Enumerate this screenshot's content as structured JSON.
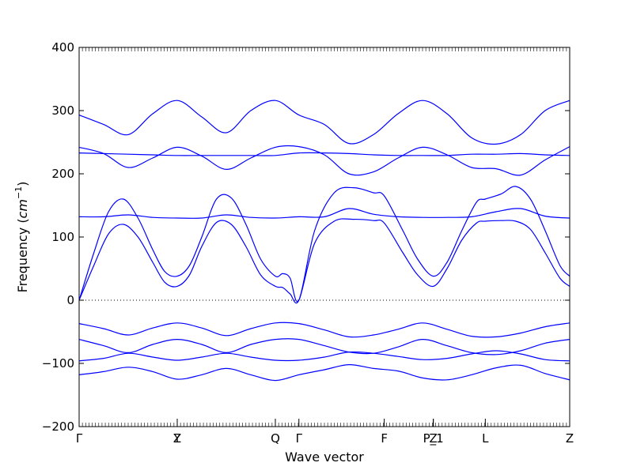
{
  "chart_data": {
    "type": "line",
    "title": "",
    "xlabel": "Wave vector",
    "ylabel_text": "Frequency (",
    "ylabel_unit": "cm",
    "ylabel_exp": "−1",
    "ylabel_close": ")",
    "ylim": [
      -200,
      400
    ],
    "yticks": [
      -200,
      -100,
      0,
      100,
      200,
      300,
      400
    ],
    "xlim": [
      0,
      1
    ],
    "high_symmetry_points": [
      {
        "label": "Γ",
        "x": 0.0
      },
      {
        "label": "Y",
        "x": 0.2
      },
      {
        "label": "Z",
        "x": 0.2
      },
      {
        "label": "Q",
        "x": 0.4
      },
      {
        "label": "Γ",
        "x": 0.448
      },
      {
        "label": "F",
        "x": 0.622
      },
      {
        "label": "P_1",
        "x": 0.722
      },
      {
        "label": "Z",
        "x": 0.722
      },
      {
        "label": "L",
        "x": 0.828
      },
      {
        "label": "Z",
        "x": 1.0
      }
    ],
    "zero_line": true,
    "series_color": "#0000ff",
    "series": [
      {
        "x": [
          0,
          0.05,
          0.1,
          0.15,
          0.2,
          0.25,
          0.3,
          0.35,
          0.4,
          0.448,
          0.5,
          0.55,
          0.6,
          0.65,
          0.7,
          0.75,
          0.8,
          0.85,
          0.9,
          0.95,
          1.0
        ],
        "y": [
          -118,
          -113,
          -106,
          -113,
          -125,
          -118,
          -108,
          -118,
          -127,
          -118,
          -110,
          -102,
          -108,
          -112,
          -123,
          -126,
          -118,
          -107,
          -103,
          -116,
          -126
        ]
      },
      {
        "x": [
          0,
          0.05,
          0.1,
          0.15,
          0.2,
          0.25,
          0.3,
          0.35,
          0.4,
          0.448,
          0.5,
          0.55,
          0.6,
          0.65,
          0.7,
          0.75,
          0.8,
          0.85,
          0.9,
          0.95,
          1.0
        ],
        "y": [
          -96,
          -92,
          -84,
          -90,
          -95,
          -90,
          -84,
          -90,
          -95,
          -95,
          -90,
          -82,
          -84,
          -89,
          -94,
          -92,
          -85,
          -80,
          -85,
          -94,
          -96
        ]
      },
      {
        "x": [
          0,
          0.05,
          0.1,
          0.15,
          0.2,
          0.25,
          0.3,
          0.35,
          0.4,
          0.448,
          0.5,
          0.55,
          0.6,
          0.65,
          0.7,
          0.75,
          0.8,
          0.85,
          0.9,
          0.95,
          1.0
        ],
        "y": [
          -62,
          -72,
          -83,
          -70,
          -62,
          -70,
          -83,
          -70,
          -62,
          -62,
          -72,
          -82,
          -84,
          -74,
          -62,
          -72,
          -83,
          -86,
          -80,
          -68,
          -62
        ]
      },
      {
        "x": [
          0,
          0.05,
          0.1,
          0.15,
          0.2,
          0.25,
          0.3,
          0.35,
          0.4,
          0.448,
          0.5,
          0.55,
          0.6,
          0.65,
          0.7,
          0.75,
          0.8,
          0.85,
          0.9,
          0.95,
          1.0
        ],
        "y": [
          -37,
          -45,
          -55,
          -44,
          -36,
          -44,
          -56,
          -45,
          -36,
          -37,
          -47,
          -58,
          -55,
          -46,
          -36,
          -46,
          -57,
          -58,
          -52,
          -42,
          -36
        ]
      },
      {
        "x": [
          0,
          0.03,
          0.06,
          0.09,
          0.12,
          0.15,
          0.175,
          0.2,
          0.225,
          0.25,
          0.28,
          0.31,
          0.34,
          0.37,
          0.4,
          0.415,
          0.43,
          0.448,
          0.48,
          0.52,
          0.56,
          0.6,
          0.622,
          0.66,
          0.69,
          0.722,
          0.75,
          0.78,
          0.81,
          0.828,
          0.86,
          0.89,
          0.92,
          0.95,
          0.98,
          1.0
        ],
        "y": [
          0,
          55,
          105,
          120,
          100,
          60,
          28,
          22,
          40,
          85,
          123,
          120,
          85,
          40,
          22,
          20,
          10,
          0,
          90,
          125,
          128,
          126,
          122,
          75,
          40,
          22,
          50,
          95,
          122,
          125,
          126,
          125,
          112,
          75,
          35,
          22
        ]
      },
      {
        "x": [
          0,
          0.03,
          0.06,
          0.09,
          0.12,
          0.15,
          0.175,
          0.2,
          0.225,
          0.25,
          0.28,
          0.31,
          0.34,
          0.37,
          0.4,
          0.415,
          0.43,
          0.448,
          0.48,
          0.52,
          0.56,
          0.6,
          0.622,
          0.66,
          0.69,
          0.722,
          0.75,
          0.78,
          0.81,
          0.828,
          0.86,
          0.89,
          0.92,
          0.95,
          0.98,
          1.0
        ],
        "y": [
          0,
          75,
          140,
          160,
          130,
          80,
          45,
          38,
          55,
          100,
          160,
          162,
          120,
          65,
          38,
          42,
          35,
          0,
          110,
          170,
          178,
          170,
          165,
          110,
          65,
          38,
          60,
          110,
          155,
          160,
          168,
          180,
          160,
          110,
          55,
          38
        ]
      },
      {
        "x": [
          0,
          0.05,
          0.1,
          0.15,
          0.2,
          0.25,
          0.3,
          0.35,
          0.4,
          0.448,
          0.5,
          0.55,
          0.6,
          0.65,
          0.7,
          0.75,
          0.8,
          0.85,
          0.9,
          0.95,
          1.0
        ],
        "y": [
          132,
          132,
          135,
          131,
          130,
          130,
          135,
          131,
          130,
          132,
          132,
          145,
          136,
          132,
          131,
          131,
          132,
          140,
          145,
          133,
          130
        ]
      },
      {
        "x": [
          0,
          0.05,
          0.1,
          0.15,
          0.2,
          0.25,
          0.3,
          0.35,
          0.4,
          0.448,
          0.5,
          0.55,
          0.6,
          0.65,
          0.7,
          0.75,
          0.8,
          0.85,
          0.9,
          0.95,
          1.0
        ],
        "y": [
          242,
          232,
          210,
          225,
          242,
          228,
          207,
          225,
          242,
          243,
          230,
          200,
          203,
          225,
          242,
          230,
          210,
          208,
          198,
          222,
          243
        ]
      },
      {
        "x": [
          0,
          0.05,
          0.1,
          0.15,
          0.2,
          0.25,
          0.3,
          0.35,
          0.4,
          0.448,
          0.5,
          0.55,
          0.6,
          0.65,
          0.7,
          0.75,
          0.8,
          0.85,
          0.9,
          0.95,
          1.0
        ],
        "y": [
          233,
          232,
          231,
          230,
          229,
          229,
          229,
          229,
          229,
          233,
          233,
          232,
          230,
          229,
          229,
          229,
          231,
          231,
          232,
          230,
          229
        ]
      },
      {
        "x": [
          0,
          0.05,
          0.1,
          0.15,
          0.2,
          0.25,
          0.3,
          0.35,
          0.4,
          0.448,
          0.5,
          0.55,
          0.6,
          0.65,
          0.7,
          0.75,
          0.8,
          0.85,
          0.9,
          0.95,
          1.0
        ],
        "y": [
          293,
          278,
          262,
          295,
          316,
          290,
          265,
          300,
          316,
          293,
          278,
          248,
          262,
          295,
          316,
          295,
          257,
          247,
          262,
          300,
          316
        ]
      }
    ]
  }
}
